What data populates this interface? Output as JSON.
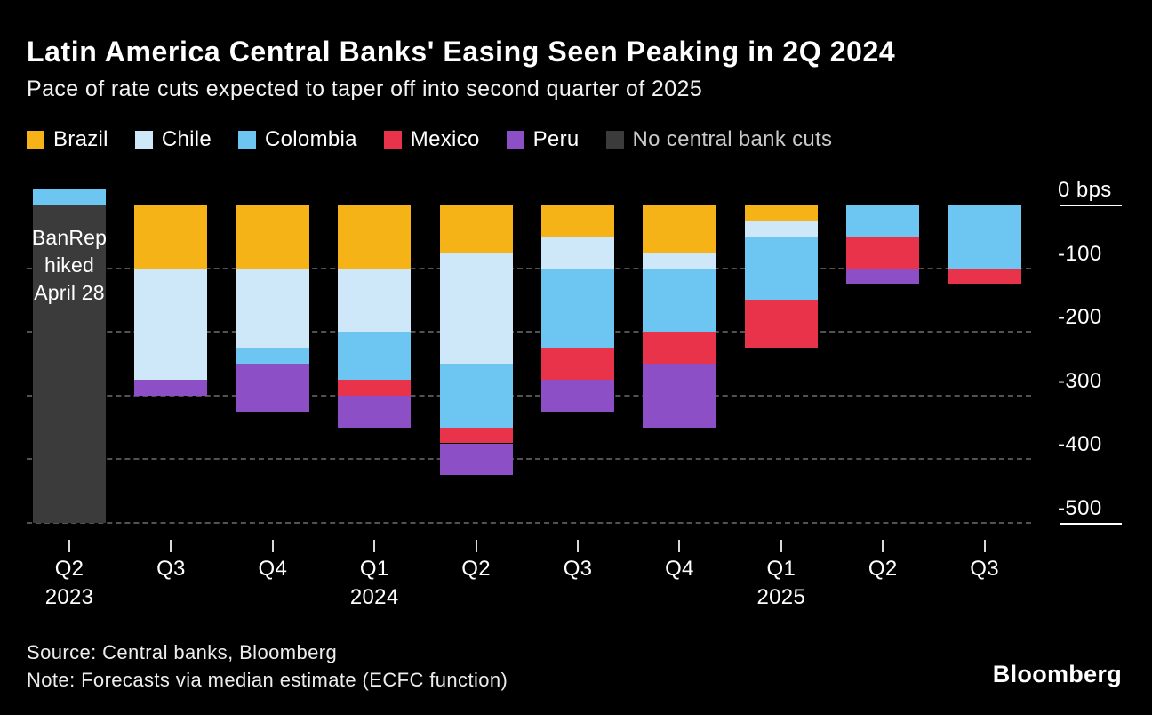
{
  "header": {
    "title": "Latin America Central Banks' Easing Seen Peaking in 2Q 2024",
    "subtitle": "Pace of rate cuts expected to taper off into second quarter of 2025"
  },
  "legend": [
    {
      "label": "Brazil",
      "color": "#f5b317",
      "text_color": "#ffffff"
    },
    {
      "label": "Chile",
      "color": "#cfe8f9",
      "text_color": "#ffffff"
    },
    {
      "label": "Colombia",
      "color": "#6dc6f1",
      "text_color": "#ffffff"
    },
    {
      "label": "Mexico",
      "color": "#e9334a",
      "text_color": "#ffffff"
    },
    {
      "label": "Peru",
      "color": "#8c4fc6",
      "text_color": "#ffffff"
    },
    {
      "label": "No central bank cuts",
      "color": "#3b3b3b",
      "text_color": "#c9c9c9"
    }
  ],
  "annotation": {
    "text": "BanRep\nhiked\nApril 28"
  },
  "y_axis": {
    "unit": "bps",
    "labels": [
      "0 bps",
      "-100",
      "-200",
      "-300",
      "-400",
      "-500"
    ]
  },
  "x_axis": {
    "quarters": [
      "Q2",
      "Q3",
      "Q4",
      "Q1",
      "Q2",
      "Q3",
      "Q4",
      "Q1",
      "Q2",
      "Q3"
    ],
    "years": [
      {
        "label": "2023",
        "index": 0
      },
      {
        "label": "2024",
        "index": 3
      },
      {
        "label": "2025",
        "index": 7
      }
    ]
  },
  "chart_data": {
    "type": "bar",
    "stacked": true,
    "unit": "bps",
    "title": "Latin America Central Banks' Easing Seen Peaking in 2Q 2024",
    "subtitle": "Pace of rate cuts expected to taper off into second quarter of 2025",
    "categories": [
      "Q2 2023",
      "Q3 2023",
      "Q4 2023",
      "Q1 2024",
      "Q2 2024",
      "Q3 2024",
      "Q4 2024",
      "Q1 2025",
      "Q2 2025",
      "Q3 2025"
    ],
    "series": [
      {
        "name": "Brazil",
        "color": "#f5b317",
        "values": [
          0,
          -100,
          -100,
          -100,
          -75,
          -50,
          -75,
          -25,
          0,
          0
        ]
      },
      {
        "name": "Chile",
        "color": "#cfe8f9",
        "values": [
          0,
          -175,
          -125,
          -100,
          -175,
          -50,
          -25,
          -25,
          0,
          0
        ]
      },
      {
        "name": "Colombia",
        "color": "#6dc6f1",
        "values": [
          25,
          0,
          -25,
          -75,
          -100,
          -125,
          -100,
          -100,
          -50,
          -100
        ]
      },
      {
        "name": "Mexico",
        "color": "#e9334a",
        "values": [
          0,
          0,
          0,
          -25,
          -25,
          -50,
          -50,
          -75,
          -50,
          -25
        ]
      },
      {
        "name": "Peru",
        "color": "#8c4fc6",
        "values": [
          0,
          -25,
          -75,
          -50,
          -50,
          -50,
          -100,
          0,
          -25,
          0
        ]
      },
      {
        "name": "No central bank cuts",
        "color": "#3b3b3b",
        "background": true,
        "values": [
          -500,
          0,
          0,
          0,
          0,
          0,
          0,
          0,
          0,
          0
        ]
      }
    ],
    "ylim": [
      -500,
      50
    ],
    "gridlines": [
      -100,
      -200,
      -300,
      -400,
      -500
    ],
    "legend_position": "top",
    "annotations": [
      "BanRep hiked April 28 (Q2 2023)"
    ]
  },
  "footer": {
    "source": "Source: Central banks, Bloomberg",
    "note": "Note: Forecasts via median estimate (ECFC function)",
    "brand": "Bloomberg"
  }
}
